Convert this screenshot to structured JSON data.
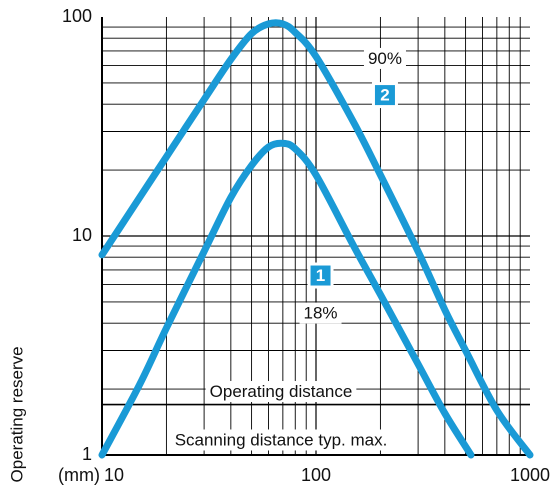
{
  "chart_data": {
    "type": "line",
    "x_scale": "log",
    "y_scale": "log",
    "xlim": [
      10,
      1000
    ],
    "ylim": [
      1,
      100
    ],
    "x_unit_label": "(mm)",
    "xticks": [
      {
        "value": 10,
        "label": "10"
      },
      {
        "value": 100,
        "label": "100"
      },
      {
        "value": 1000,
        "label": "1000"
      }
    ],
    "yticks": [
      {
        "value": 1,
        "label": "1"
      },
      {
        "value": 10,
        "label": "10"
      },
      {
        "value": 100,
        "label": "100"
      }
    ],
    "ylabel": "Operating reserve",
    "grid": true,
    "series": [
      {
        "name": "90%",
        "badge": "2",
        "color": "#1a9ad6",
        "points": [
          [
            10,
            8.2
          ],
          [
            15,
            15
          ],
          [
            20,
            23
          ],
          [
            30,
            42
          ],
          [
            40,
            64
          ],
          [
            50,
            84
          ],
          [
            60,
            93
          ],
          [
            70,
            93
          ],
          [
            80,
            85
          ],
          [
            100,
            66
          ],
          [
            150,
            33
          ],
          [
            200,
            19
          ],
          [
            300,
            8.5
          ],
          [
            400,
            4.6
          ],
          [
            500,
            3.0
          ],
          [
            700,
            1.6
          ],
          [
            1000,
            1.0
          ]
        ]
      },
      {
        "name": "18%",
        "badge": "1",
        "color": "#1a9ad6",
        "points": [
          [
            10,
            1.0
          ],
          [
            15,
            2.1
          ],
          [
            20,
            3.8
          ],
          [
            30,
            8.5
          ],
          [
            40,
            15
          ],
          [
            50,
            21
          ],
          [
            60,
            25.5
          ],
          [
            70,
            26.5
          ],
          [
            80,
            25
          ],
          [
            100,
            19
          ],
          [
            150,
            9
          ],
          [
            200,
            5.4
          ],
          [
            300,
            2.6
          ],
          [
            400,
            1.55
          ],
          [
            530,
            1.0
          ]
        ]
      }
    ],
    "reference_lines": [
      {
        "label": "Operating distance",
        "y": 1.7
      },
      {
        "label": "Scanning distance typ. max.",
        "y": 1.0
      }
    ]
  }
}
